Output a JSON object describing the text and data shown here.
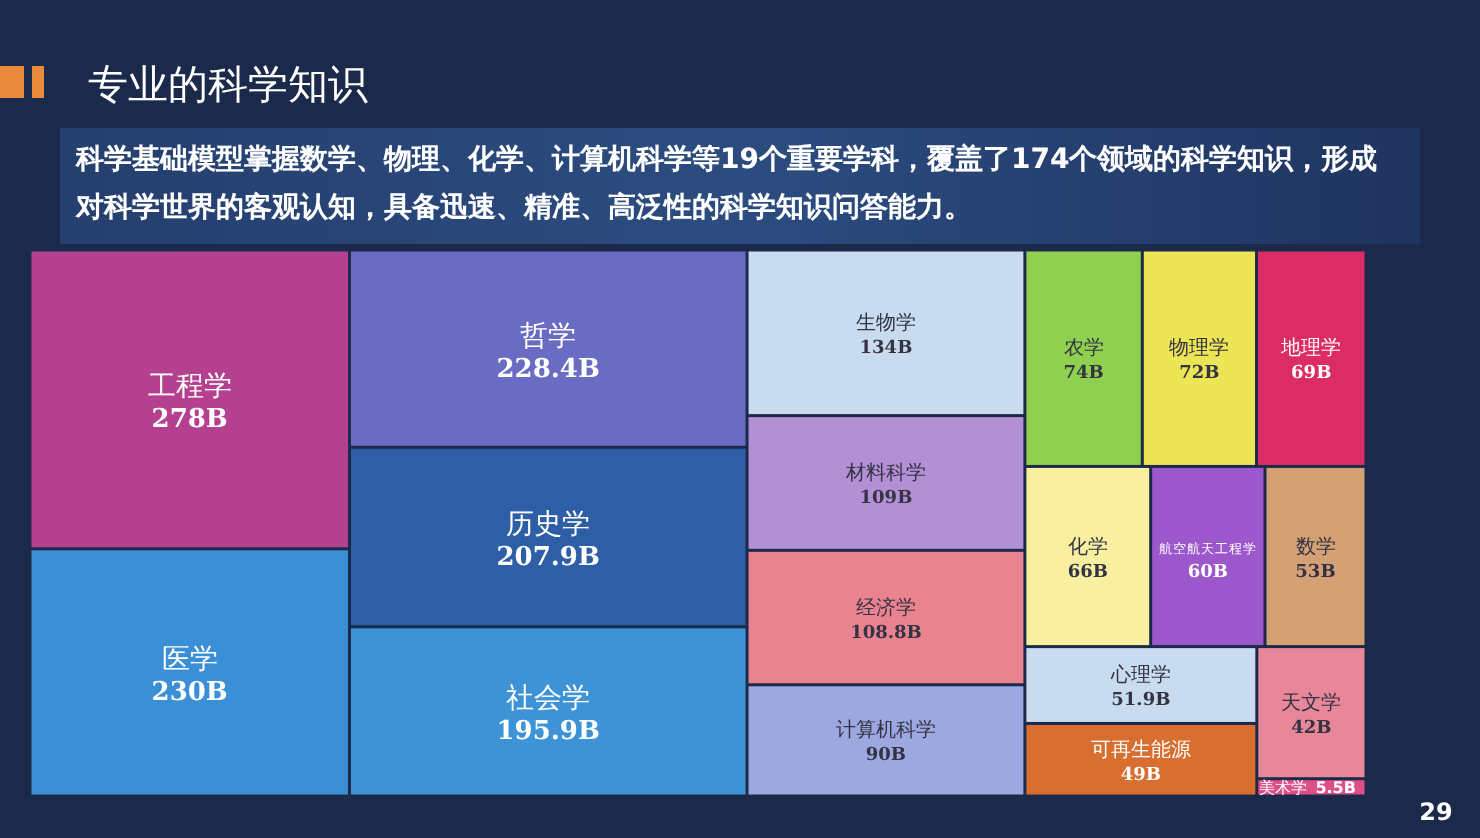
{
  "chart_data": {
    "type": "other",
    "title": "专业的科学知识",
    "subtitle": "科学基础模型掌握数学、物理、化学、计算机科学等19个重要学科，覆盖了174个领域的科学知识，形成对科学世界的客观认知，具备迅速、精准、高泛性的科学知识问答能力。",
    "categories": [
      "工程学",
      "医学",
      "哲学",
      "历史学",
      "社会学",
      "生物学",
      "材料科学",
      "经济学",
      "计算机科学",
      "农学",
      "物理学",
      "地理学",
      "化学",
      "航空航天工程学",
      "数学",
      "心理学",
      "可再生能源",
      "天文学",
      "美术学"
    ],
    "values": [
      278,
      230,
      228.4,
      207.9,
      195.9,
      134,
      109,
      108.8,
      90,
      74,
      72,
      69,
      66,
      60,
      53,
      51.9,
      49,
      42,
      5.5
    ],
    "value_labels": [
      "278B",
      "230B",
      "228.4B",
      "207.9B",
      "195.9B",
      "134B",
      "109B",
      "108.8B",
      "90B",
      "74B",
      "72B",
      "69B",
      "66B",
      "60B",
      "53B",
      "51.9B",
      "49B",
      "42B",
      "5.5B"
    ],
    "colors": [
      "#b5408f",
      "#3a8fd6",
      "#6a6cc4",
      "#2e5fa6",
      "#3d93d6",
      "#c9dcef",
      "#b38fd4",
      "#e8838f",
      "#9ea8e0",
      "#8fd14f",
      "#ece556",
      "#dd2c64",
      "#f8f0a0",
      "#9c57cc",
      "#d4a074",
      "#c9dcef",
      "#d86f30",
      "#e8879a",
      "#dd4f86"
    ],
    "annotations": [
      "29"
    ]
  }
}
